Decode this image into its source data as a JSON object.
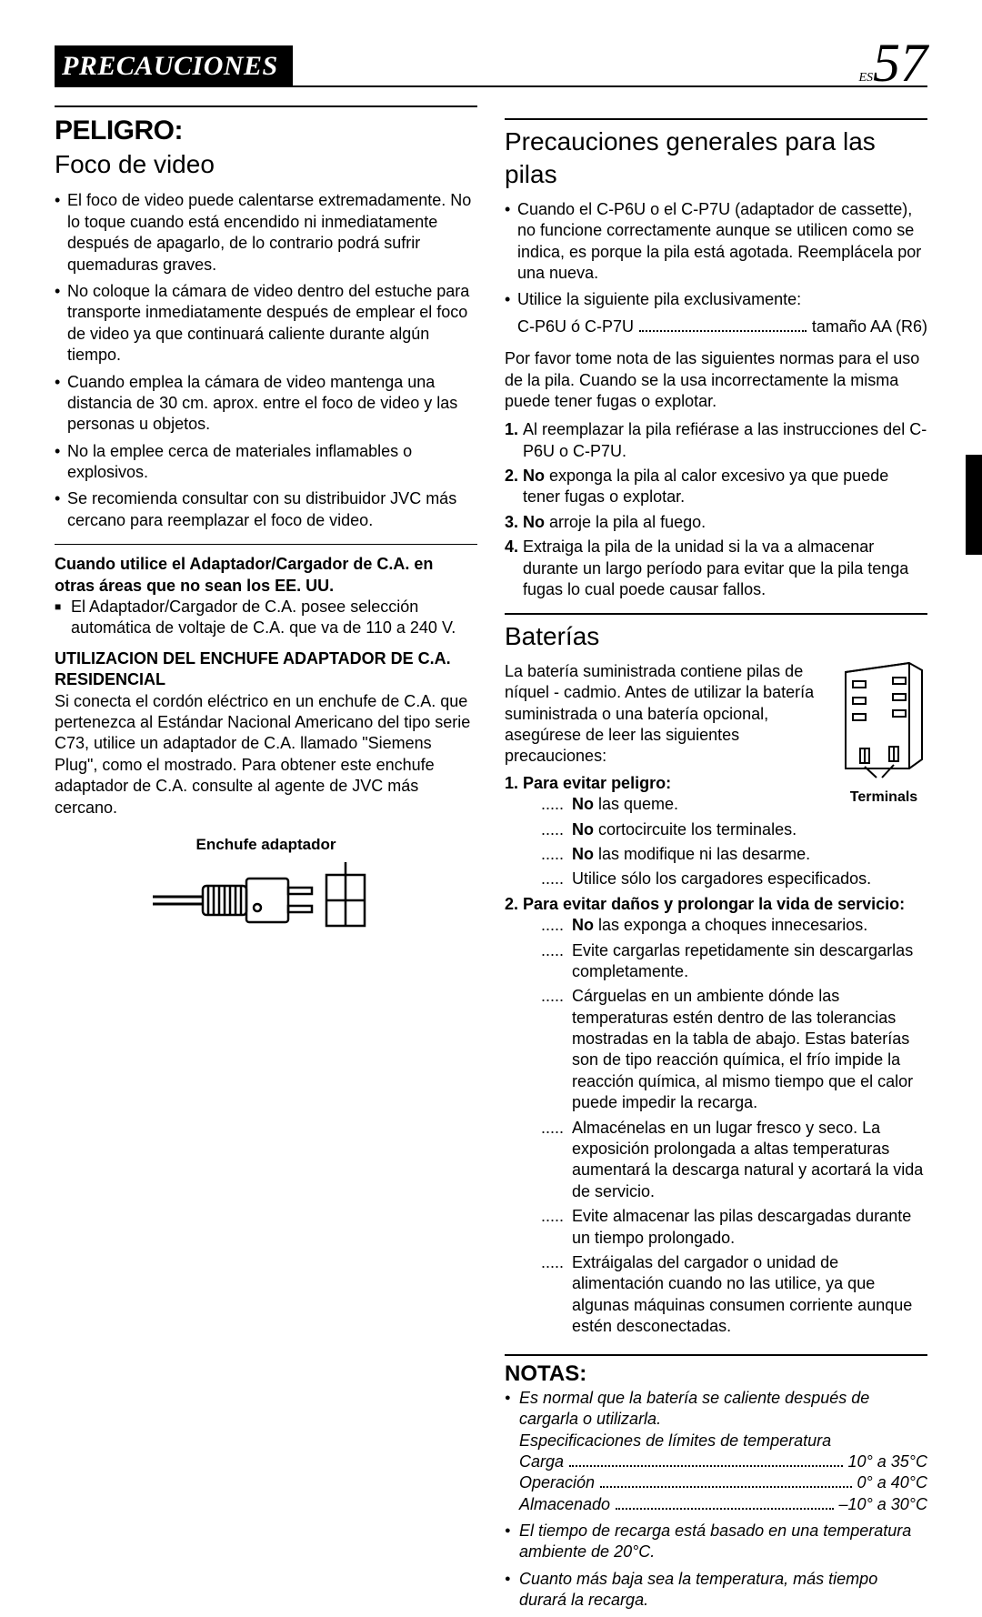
{
  "header": {
    "title": "PRECAUCIONES",
    "lang_prefix": "ES",
    "page_number": "57"
  },
  "left": {
    "peligro": "PELIGRO:",
    "foco_title": "Foco de video",
    "foco_bullets": [
      "El foco de video puede calentarse extremadamente. No lo toque cuando está encendido ni inmediatamente después de apagarlo, de lo contrario podrá sufrir quemaduras graves.",
      "No coloque la cámara de video dentro del estuche para transporte inmediatamente después de emplear el foco de video ya que continuará caliente durante algún tiempo.",
      "Cuando emplea la cámara de video mantenga una distancia de 30 cm. aprox. entre el foco de video y las personas u objetos.",
      "No la emplee cerca de materiales inflamables o explosivos.",
      "Se recomienda consultar con su distribuidor JVC más cercano para reemplazar el foco de video."
    ],
    "adapter_bold": "Cuando utilice el Adaptador/Cargador de C.A. en otras áreas que no sean los EE. UU.",
    "adapter_text": "El Adaptador/Cargador de C.A. posee selección automática de voltaje de C.A. que va de 110 a 240 V.",
    "plug_heading": "UTILIZACION DEL ENCHUFE ADAPTADOR DE C.A. RESIDENCIAL",
    "plug_text": "Si conecta el cordón eléctrico en un enchufe de C.A. que pertenezca al Estándar Nacional Americano del tipo serie C73, utilice un adaptador de C.A. llamado \"Siemens Plug\", como el mostrado. Para obtener este enchufe adaptador de C.A. consulte al agente de JVC más cercano.",
    "plug_caption": "Enchufe adaptador"
  },
  "right": {
    "gen_title": "Precauciones generales para las pilas",
    "gen_bullets": [
      "Cuando el C-P6U o el C-P7U (adaptador de cassette), no funcione correctamente aunque se utilicen como se indica, es porque la pila está agotada. Reemplácela por una nueva.",
      "Utilice la siguiente pila exclusivamente:"
    ],
    "pila_left": "C-P6U ó C-P7U",
    "pila_right": "tamaño AA (R6)",
    "gen_para": "Por favor tome nota de las siguientes normas para el uso de la pila. Cuando se la usa incorrectamente la misma puede tener fugas o explotar.",
    "gen_numbered": [
      "Al reemplazar la pila refiérase a las instrucciones del C-P6U o C-P7U.",
      "<b>No</b> exponga la pila al calor excesivo ya que puede tener fugas o explotar.",
      "<b>No</b> arroje la pila al fuego.",
      "Extraiga la pila de la unidad si la va a almacenar durante un largo período para evitar que la pila tenga fugas lo cual poede causar fallos."
    ],
    "batt_title": "Baterías",
    "batt_intro": "La batería suministrada contiene pilas de níquel - cadmio. Antes de utilizar la batería suministrada o una batería opcional, asegúrese de leer las siguientes precauciones:",
    "terminals_label": "Terminals",
    "list1_head": "Para evitar peligro:",
    "list1": [
      "<b>No</b> las queme.",
      "<b>No</b> cortocircuite los terminales.",
      "<b>No</b> las modifique ni las desarme.",
      "Utilice sólo los cargadores especificados."
    ],
    "list2_head": "Para evitar daños y prolongar la vida de servicio:",
    "list2": [
      "<b>No</b> las exponga a choques innecesarios.",
      "Evite cargarlas repetidamente sin descargarlas completamente.",
      "Cárguelas en un ambiente dónde las temperaturas estén dentro de las tolerancias mostradas en la tabla de abajo. Estas baterías son de tipo reacción química, el frío impide la reacción química, al mismo tiempo que el calor puede impedir la recarga.",
      "Almacénelas en un lugar fresco y seco. La exposición prolongada a altas temperaturas aumentará la descarga natural y acortará la vida de servicio.",
      "Evite almacenar las pilas descargadas durante un tiempo prolongado.",
      "Extráigalas del cargador o unidad de alimentación cuando no las utilice, ya que algunas máquinas consumen corriente aunque estén desconectadas."
    ],
    "notas": "NOTAS:",
    "notes": [
      {
        "text": "Es normal que la batería se caliente después de cargarla o utilizarla.",
        "sub": "Especificaciones de límites de temperatura",
        "rows": [
          {
            "l": "Carga",
            "r": "10° a 35°C"
          },
          {
            "l": "Operación",
            "r": "0° a 40°C"
          },
          {
            "l": "Almacenado",
            "r": "–10° a 30°C"
          }
        ]
      },
      {
        "text": "El tiempo de recarga está basado en una temperatura ambiente de 20°C."
      },
      {
        "text": "Cuanto más baja sea la temperatura, más tiempo durará la recarga."
      }
    ]
  }
}
